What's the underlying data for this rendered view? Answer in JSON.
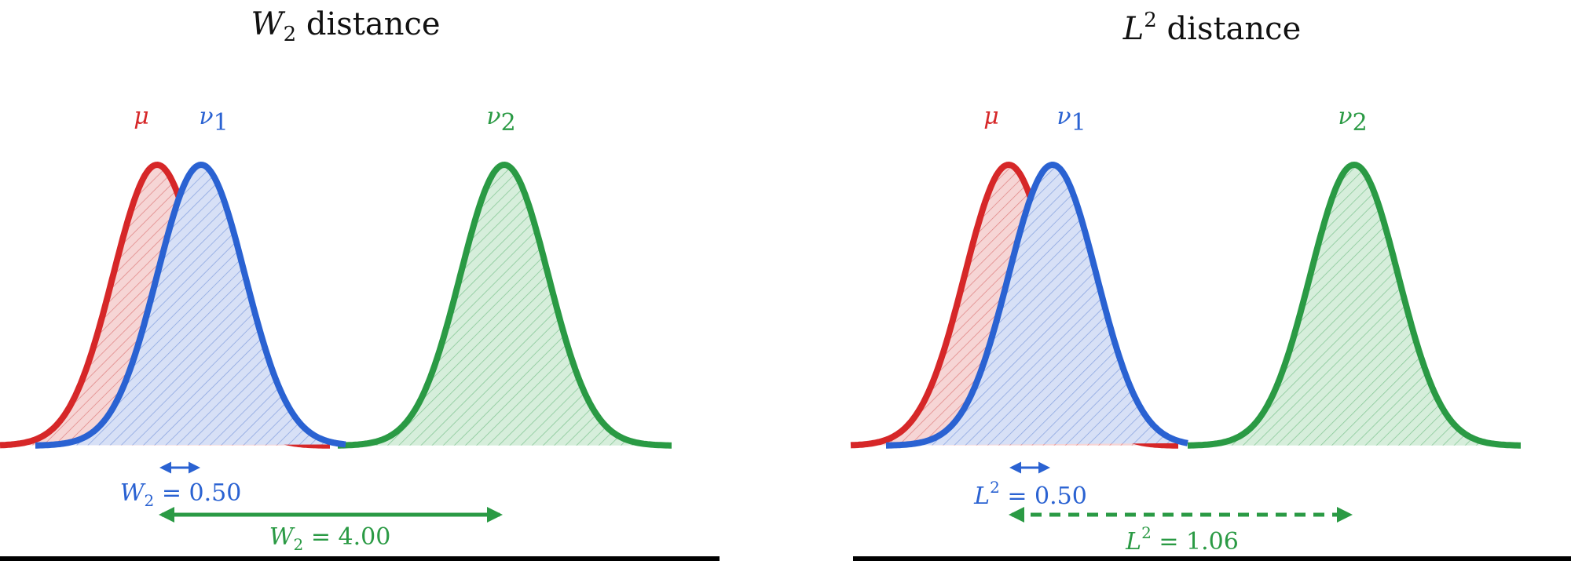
{
  "panels": [
    {
      "title_symbol": "W",
      "title_sub": "2",
      "title_rest": " distance",
      "curve_labels": {
        "mu": "μ",
        "nu1": "ν",
        "nu1_sub": "1",
        "nu2": "ν",
        "nu2_sub": "2"
      },
      "dist1": {
        "sym": "W",
        "script": "2",
        "value": " = 0.50"
      },
      "dist2": {
        "sym": "W",
        "script": "2",
        "value": " = 4.00"
      },
      "arrow2_style": "solid"
    },
    {
      "title_symbol": "L",
      "title_sub": "2",
      "title_rest": " distance",
      "curve_labels": {
        "mu": "μ",
        "nu1": "ν",
        "nu1_sub": "1",
        "nu2": "ν",
        "nu2_sub": "2"
      },
      "dist1": {
        "sym": "L",
        "script": "2",
        "value": " = 0.50"
      },
      "dist2": {
        "sym": "L",
        "script": "2",
        "value": " = 1.06"
      },
      "arrow2_style": "dashed"
    }
  ],
  "colors": {
    "mu": "#d62728",
    "nu1": "#2a62d2",
    "nu2": "#2a9a44",
    "axis": "#000000"
  }
}
